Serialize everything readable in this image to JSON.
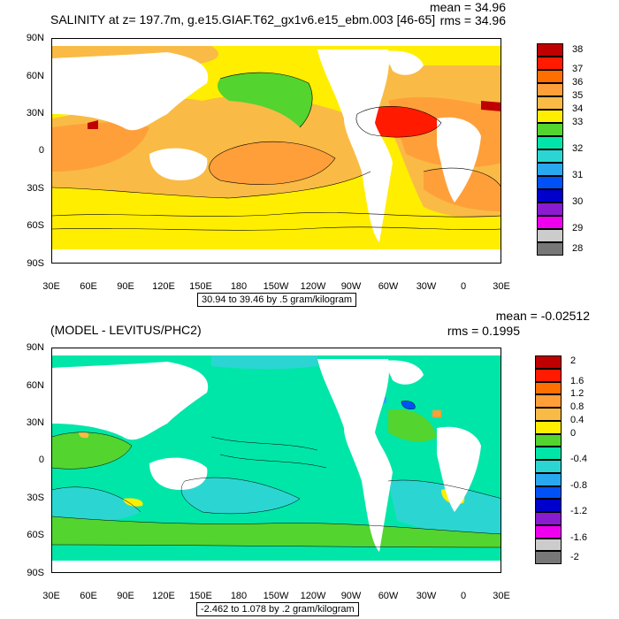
{
  "top": {
    "title": "SALINITY at z= 197.7m, g.e15.GIAF.T62_gx1v6.e15_ebm.003 [46-65]",
    "mean": "mean = 34.96",
    "rms": "rms = 34.96",
    "range": "30.94 to 39.46 by .5 gram/kilogram",
    "colorbar_labels": [
      "38",
      "37",
      "36",
      "35",
      "34",
      "33",
      "32",
      "31",
      "30",
      "29",
      "28"
    ],
    "colors": [
      "#c00000",
      "#ff1a00",
      "#ff6f00",
      "#ff9f3a",
      "#f9bb45",
      "#ffee00",
      "#53d42f",
      "#00e6a8",
      "#2bd6d2",
      "#28a8ef",
      "#0052f7",
      "#0000cc",
      "#8a1bd0",
      "#ee00ee",
      "#cccccc",
      "#777777"
    ]
  },
  "bottom": {
    "title": "(MODEL - LEVITUS/PHC2)",
    "mean": "mean = -0.02512",
    "rms": "rms = 0.1995",
    "range": "-2.462 to 1.078 by .2 gram/kilogram",
    "colorbar_labels": [
      "2",
      "1.6",
      "1.2",
      "0.8",
      "0.4",
      "0",
      "-0.4",
      "-0.8",
      "-1.2",
      "-1.6",
      "-2"
    ],
    "colors": [
      "#c00000",
      "#ff1a00",
      "#ff6f00",
      "#ff9f3a",
      "#f9bb45",
      "#ffee00",
      "#53d42f",
      "#00e6a8",
      "#2bd6d2",
      "#28a8ef",
      "#0052f7",
      "#0000cc",
      "#8a1bd0",
      "#ee00ee",
      "#cccccc",
      "#777777"
    ]
  },
  "lat_labels": [
    "90N",
    "60N",
    "30N",
    "0",
    "30S",
    "60S",
    "90S"
  ],
  "lon_labels": [
    "30E",
    "60E",
    "90E",
    "120E",
    "150E",
    "180",
    "150W",
    "120W",
    "90W",
    "60W",
    "30W",
    "0",
    "30E"
  ]
}
